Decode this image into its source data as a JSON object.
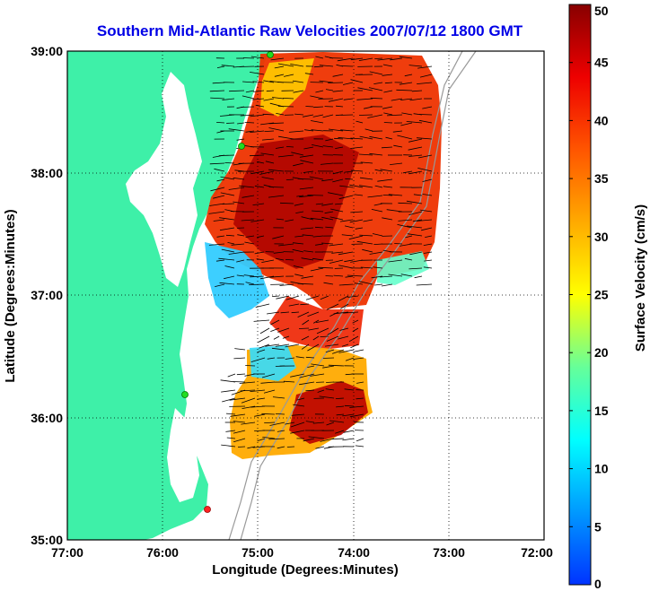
{
  "chart_data": {
    "type": "heatmap",
    "title": "Southern Mid-Atlantic Raw Velocities 2007/07/12 1800 GMT",
    "xlabel": "Longitude (Degrees:Minutes)",
    "ylabel": "Latitude (Degrees:Minutes)",
    "x_ticks": [
      "77:00",
      "76:00",
      "75:00",
      "74:00",
      "73:00",
      "72:00"
    ],
    "y_ticks": [
      "39:00",
      "38:00",
      "37:00",
      "36:00",
      "35:00"
    ],
    "x_range": [
      -77,
      -72
    ],
    "y_range": [
      35,
      39
    ],
    "grid": true,
    "colorbar": {
      "label": "Surface Velocity (cm/s)",
      "range": [
        0,
        50
      ],
      "ticks": [
        "0",
        "5",
        "10",
        "15",
        "20",
        "25",
        "30",
        "35",
        "40",
        "45",
        "50"
      ],
      "colormap": "jet"
    }
  },
  "colors": {
    "land": "#3ef0a8",
    "title": "#0000e6",
    "station_green": "#22dd22",
    "station_red": "#ff2222"
  }
}
